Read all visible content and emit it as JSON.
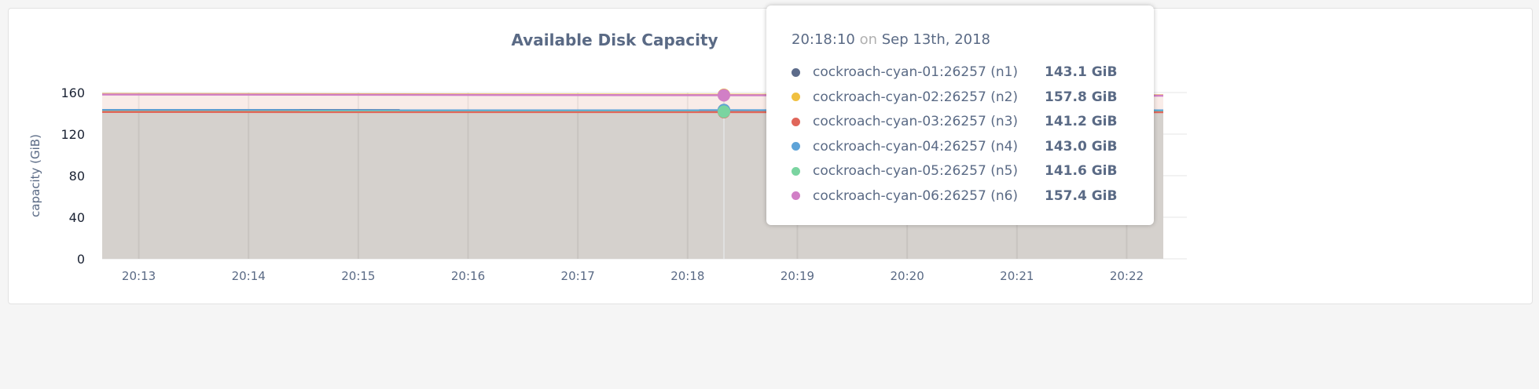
{
  "chart_data": {
    "type": "area",
    "title": "Available Disk Capacity",
    "ylabel": "capacity (GiB)",
    "xlabel": "",
    "ylim": [
      0,
      160
    ],
    "yticks": [
      "0",
      "40",
      "80",
      "120",
      "160"
    ],
    "xticks": [
      "20:13",
      "20:14",
      "20:15",
      "20:16",
      "20:17",
      "20:18",
      "20:19",
      "20:20",
      "20:21",
      "20:22"
    ],
    "xrange": [
      "20:12:40",
      "20:22:20"
    ],
    "grid": true,
    "series": [
      {
        "name": "cockroach-cyan-01:26257 (n1)",
        "color": "#5c6b8a",
        "x": [
          "20:12:40",
          "20:22:20"
        ],
        "values": [
          143.2,
          143.0
        ]
      },
      {
        "name": "cockroach-cyan-02:26257 (n2)",
        "color": "#f0c040",
        "x": [
          "20:12:40",
          "20:22:20"
        ],
        "values": [
          158.6,
          157.4
        ]
      },
      {
        "name": "cockroach-cyan-03:26257 (n3)",
        "color": "#e0665a",
        "x": [
          "20:12:40",
          "20:22:20"
        ],
        "values": [
          141.3,
          141.1
        ]
      },
      {
        "name": "cockroach-cyan-04:26257 (n4)",
        "color": "#5ea3d8",
        "x": [
          "20:12:40",
          "20:22:20"
        ],
        "values": [
          143.1,
          142.9
        ]
      },
      {
        "name": "cockroach-cyan-05:26257 (n5)",
        "color": "#7ad4a0",
        "x": [
          "20:12:40",
          "20:22:20"
        ],
        "values": [
          141.7,
          141.5
        ]
      },
      {
        "name": "cockroach-cyan-06:26257 (n6)",
        "color": "#d17fc6",
        "x": [
          "20:12:40",
          "20:22:20"
        ],
        "values": [
          158.1,
          157.0
        ]
      }
    ]
  },
  "tooltip": {
    "time": "20:18:10",
    "on": "on",
    "date": "Sep 13th, 2018",
    "rows": [
      {
        "name": "cockroach-cyan-01:26257 (n1)",
        "value": "143.1 GiB"
      },
      {
        "name": "cockroach-cyan-02:26257 (n2)",
        "value": "157.8 GiB"
      },
      {
        "name": "cockroach-cyan-03:26257 (n3)",
        "value": "141.2 GiB"
      },
      {
        "name": "cockroach-cyan-04:26257 (n4)",
        "value": "143.0 GiB"
      },
      {
        "name": "cockroach-cyan-05:26257 (n5)",
        "value": "141.6 GiB"
      },
      {
        "name": "cockroach-cyan-06:26257 (n6)",
        "value": "157.4 GiB"
      }
    ]
  }
}
